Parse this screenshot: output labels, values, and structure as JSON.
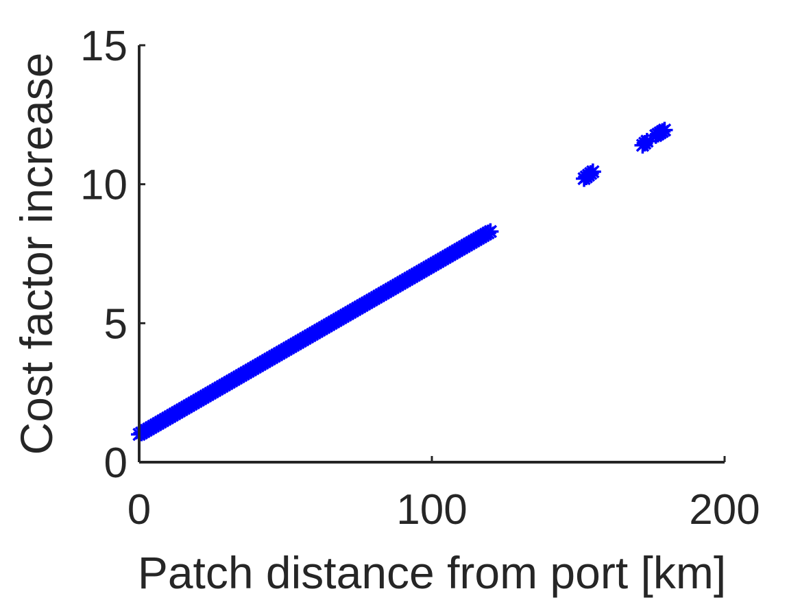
{
  "chart_data": {
    "type": "scatter",
    "xlabel": "Patch distance from port [km]",
    "ylabel": "Cost factor increase",
    "xlim": [
      0,
      200
    ],
    "ylim": [
      0,
      15
    ],
    "xticks": [
      0,
      100,
      200
    ],
    "yticks": [
      0,
      5,
      10,
      15
    ],
    "marker": "asterisk",
    "marker_color": "#0000ff",
    "grid": false,
    "series": [
      {
        "segments": [
          {
            "x_start": 0,
            "x_end": 120,
            "y_start": 1.0,
            "y_end": 8.3
          },
          {
            "x_start": 152,
            "x_end": 155,
            "y_start": 10.2,
            "y_end": 10.45
          },
          {
            "x_start": 172,
            "x_end": 173.5,
            "y_start": 11.4,
            "y_end": 11.55
          },
          {
            "x_start": 176.5,
            "x_end": 179.5,
            "y_start": 11.75,
            "y_end": 11.95
          }
        ]
      }
    ]
  }
}
